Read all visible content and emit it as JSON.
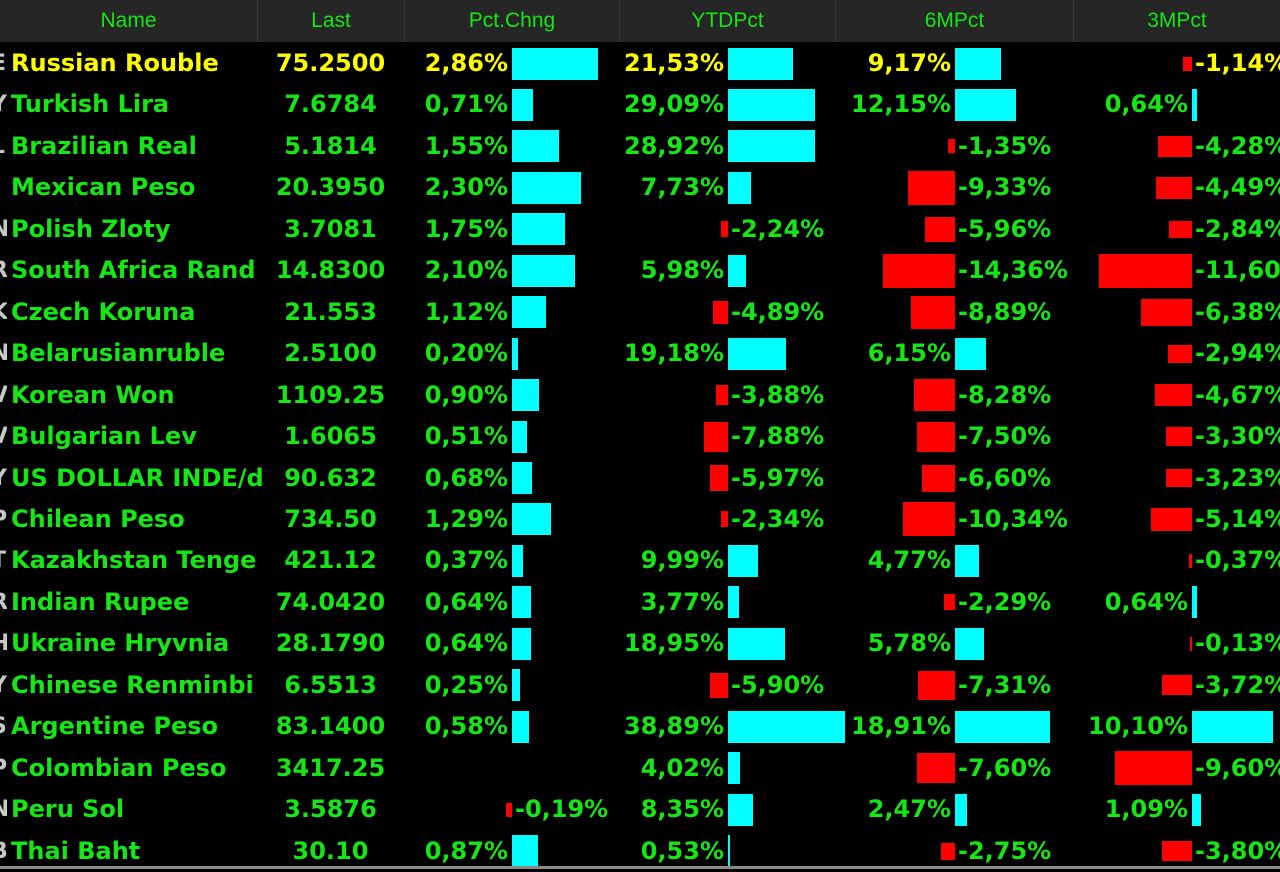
{
  "colors": {
    "green": "#16e516",
    "yellow": "#ffff00",
    "cyan": "#00ffff",
    "red": "#ff0000",
    "header_bg": "#262626"
  },
  "headers": {
    "name": "Name",
    "last": "Last",
    "pct": "Pct.Chng",
    "ytd": "YTDPct",
    "m6": "6MPct",
    "m3": "3MPct"
  },
  "rows": [
    {
      "edge": "E",
      "name": "Russian Rouble",
      "last": "75.2500",
      "pct": "2,86%",
      "ytd": "21,53%",
      "m6": "9,17%",
      "m3": "-1,14%",
      "highlight": true
    },
    {
      "edge": "Y",
      "name": "Turkish Lira",
      "last": "7.6784",
      "pct": "0,71%",
      "ytd": "29,09%",
      "m6": "12,15%",
      "m3": "0,64%"
    },
    {
      "edge": "L",
      "name": "Brazilian Real",
      "last": "5.1814",
      "pct": "1,55%",
      "ytd": "28,92%",
      "m6": "-1,35%",
      "m3": "-4,28%"
    },
    {
      "edge": "I",
      "name": "Mexican Peso",
      "last": "20.3950",
      "pct": "2,30%",
      "ytd": "7,73%",
      "m6": "-9,33%",
      "m3": "-4,49%"
    },
    {
      "edge": "N",
      "name": "Polish Zloty",
      "last": "3.7081",
      "pct": "1,75%",
      "ytd": "-2,24%",
      "m6": "-5,96%",
      "m3": "-2,84%"
    },
    {
      "edge": "R",
      "name": "South Africa Rand",
      "last": "14.8300",
      "pct": "2,10%",
      "ytd": "5,98%",
      "m6": "-14,36%",
      "m3": "-11,60%"
    },
    {
      "edge": "K",
      "name": "Czech Koruna",
      "last": "21.553",
      "pct": "1,12%",
      "ytd": "-4,89%",
      "m6": "-8,89%",
      "m3": "-6,38%"
    },
    {
      "edge": "N",
      "name": "Belarusianruble",
      "last": "2.5100",
      "pct": "0,20%",
      "ytd": "19,18%",
      "m6": "6,15%",
      "m3": "-2,94%"
    },
    {
      "edge": "V",
      "name": "Korean Won",
      "last": "1109.25",
      "pct": "0,90%",
      "ytd": "-3,88%",
      "m6": "-8,28%",
      "m3": "-4,67%"
    },
    {
      "edge": "V",
      "name": "Bulgarian Lev",
      "last": "1.6065",
      "pct": "0,51%",
      "ytd": "-7,88%",
      "m6": "-7,50%",
      "m3": "-3,30%"
    },
    {
      "edge": "Y",
      "name": "US DOLLAR INDE/d",
      "last": "90.632",
      "pct": "0,68%",
      "ytd": "-5,97%",
      "m6": "-6,60%",
      "m3": "-3,23%"
    },
    {
      "edge": "P",
      "name": "Chilean Peso",
      "last": "734.50",
      "pct": "1,29%",
      "ytd": "-2,34%",
      "m6": "-10,34%",
      "m3": "-5,14%"
    },
    {
      "edge": "T",
      "name": "Kazakhstan Tenge",
      "last": "421.12",
      "pct": "0,37%",
      "ytd": "9,99%",
      "m6": "4,77%",
      "m3": "-0,37%"
    },
    {
      "edge": "R",
      "name": "Indian Rupee",
      "last": "74.0420",
      "pct": "0,64%",
      "ytd": "3,77%",
      "m6": "-2,29%",
      "m3": "0,64%"
    },
    {
      "edge": "H",
      "name": "Ukraine Hryvnia",
      "last": "28.1790",
      "pct": "0,64%",
      "ytd": "18,95%",
      "m6": "5,78%",
      "m3": "-0,13%"
    },
    {
      "edge": "Y",
      "name": "Chinese Renminbi",
      "last": "6.5513",
      "pct": "0,25%",
      "ytd": "-5,90%",
      "m6": "-7,31%",
      "m3": "-3,72%"
    },
    {
      "edge": "S",
      "name": "Argentine Peso",
      "last": "83.1400",
      "pct": "0,58%",
      "ytd": "38,89%",
      "m6": "18,91%",
      "m3": "10,10%"
    },
    {
      "edge": "P",
      "name": "Colombian Peso",
      "last": "3417.25",
      "pct": "",
      "ytd": "4,02%",
      "m6": "-7,60%",
      "m3": "-9,60%"
    },
    {
      "edge": "N",
      "name": "Peru Sol",
      "last": "3.5876",
      "pct": "-0,19%",
      "ytd": "8,35%",
      "m6": "2,47%",
      "m3": "1,09%"
    },
    {
      "edge": "B",
      "name": "Thai Baht",
      "last": "30.10",
      "pct": "0,87%",
      "ytd": "0,53%",
      "m6": "-2,75%",
      "m3": "-3,80%"
    }
  ]
}
